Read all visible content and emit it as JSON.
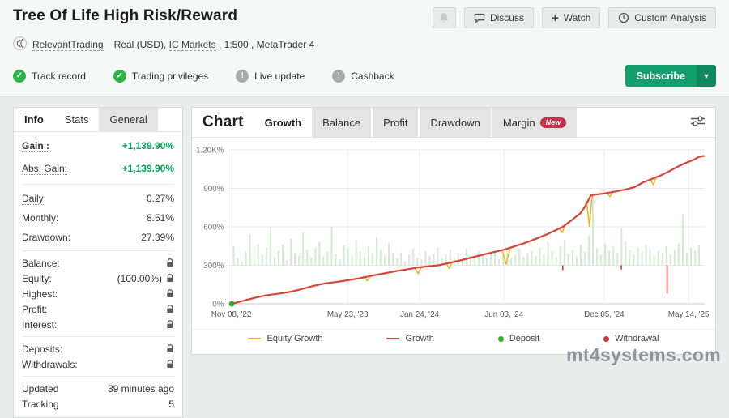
{
  "header": {
    "title": "Tree Of Life High Risk/Reward",
    "buttons": {
      "discuss": "Discuss",
      "watch": "Watch",
      "custom_analysis": "Custom Analysis"
    },
    "account": {
      "trader": "RelevantTrading",
      "details_prefix": "Real (USD), ",
      "broker": "IC Markets",
      "details_suffix": " , 1:500 , MetaTrader 4"
    },
    "badges": [
      {
        "label": "Track record",
        "status": "ok"
      },
      {
        "label": "Trading privileges",
        "status": "ok"
      },
      {
        "label": "Live update",
        "status": "info"
      },
      {
        "label": "Cashback",
        "status": "info"
      }
    ],
    "subscribe_label": "Subscribe"
  },
  "info_panel": {
    "tabs": [
      {
        "label": "Info",
        "style": "active"
      },
      {
        "label": "Stats",
        "style": "plain"
      },
      {
        "label": "General",
        "style": "gray"
      }
    ],
    "rows": [
      {
        "label": "Gain :",
        "value": "+1,139.90%",
        "gain": true,
        "underline": true,
        "bold": true,
        "size": "lg"
      },
      {
        "label": "Abs. Gain:",
        "value": "+1,139.90%",
        "gain": true,
        "underline": true,
        "size": "lg"
      },
      {
        "sep": true
      },
      {
        "label": "Daily",
        "value": "0.27%",
        "underline": true,
        "size": "md"
      },
      {
        "label": "Monthly:",
        "value": "8.51%",
        "underline": true,
        "size": "md"
      },
      {
        "label": "Drawdown:",
        "value": "27.39%",
        "size": "md"
      },
      {
        "sep": true
      },
      {
        "label": "Balance:",
        "value": "",
        "lock": true,
        "size": "sm"
      },
      {
        "label": "Equity:",
        "value": "(100.00%)",
        "lock": true,
        "size": "sm"
      },
      {
        "label": "Highest:",
        "value": "",
        "lock": true,
        "size": "sm"
      },
      {
        "label": "Profit:",
        "value": "",
        "lock": true,
        "size": "sm"
      },
      {
        "label": "Interest:",
        "value": "",
        "lock": true,
        "size": "sm"
      },
      {
        "sep": true
      },
      {
        "label": "Deposits:",
        "value": "",
        "lock": true,
        "size": "sm"
      },
      {
        "label": "Withdrawals:",
        "value": "",
        "lock": true,
        "size": "sm"
      },
      {
        "sep": true
      },
      {
        "label": "Updated",
        "value": "39 minutes ago",
        "size": "sm"
      },
      {
        "label": "Tracking",
        "value": "5",
        "size": "sm"
      }
    ]
  },
  "chart_panel": {
    "tabs": [
      {
        "label": "Chart",
        "style": "title"
      },
      {
        "label": "Growth",
        "style": "active"
      },
      {
        "label": "Balance",
        "style": "gray"
      },
      {
        "label": "Profit",
        "style": "gray"
      },
      {
        "label": "Drawdown",
        "style": "gray"
      },
      {
        "label": "Margin",
        "style": "gray",
        "badge": "New"
      }
    ]
  },
  "chart_data": {
    "type": "line",
    "title": "Growth",
    "xlabel": "",
    "ylabel": "",
    "ylim": [
      0,
      1200
    ],
    "grid": true,
    "legend_position": "bottom",
    "y_ticks": [
      {
        "v": 0,
        "label": "0%"
      },
      {
        "v": 300,
        "label": "300%"
      },
      {
        "v": 600,
        "label": "600%"
      },
      {
        "v": 900,
        "label": "900%"
      },
      {
        "v": 1200,
        "label": "1.20K%"
      }
    ],
    "x_ticks": [
      {
        "f": 0.007,
        "label": "Nov 08, '22"
      },
      {
        "f": 0.251,
        "label": "May 23, '23"
      },
      {
        "f": 0.402,
        "label": "Jan 24, '24"
      },
      {
        "f": 0.579,
        "label": "Jun 03, '24"
      },
      {
        "f": 0.789,
        "label": "Dec 05, '24"
      },
      {
        "f": 0.966,
        "label": "May 14, '25"
      }
    ],
    "series": [
      {
        "name": "Equity Growth",
        "color": "#f0b429",
        "width": 1.6,
        "points": [
          [
            0.008,
            0
          ],
          [
            0.029,
            20
          ],
          [
            0.054,
            45
          ],
          [
            0.079,
            65
          ],
          [
            0.104,
            78
          ],
          [
            0.13,
            92
          ],
          [
            0.155,
            115
          ],
          [
            0.18,
            140
          ],
          [
            0.205,
            160
          ],
          [
            0.231,
            172
          ],
          [
            0.251,
            183
          ],
          [
            0.278,
            200
          ],
          [
            0.286,
            212
          ],
          [
            0.292,
            180
          ],
          [
            0.3,
            222
          ],
          [
            0.306,
            224
          ],
          [
            0.332,
            240
          ],
          [
            0.357,
            258
          ],
          [
            0.382,
            272
          ],
          [
            0.392,
            278
          ],
          [
            0.399,
            235
          ],
          [
            0.406,
            286
          ],
          [
            0.419,
            292
          ],
          [
            0.441,
            300
          ],
          [
            0.458,
            312
          ],
          [
            0.464,
            278
          ],
          [
            0.47,
            322
          ],
          [
            0.487,
            338
          ],
          [
            0.51,
            360
          ],
          [
            0.534,
            382
          ],
          [
            0.557,
            402
          ],
          [
            0.575,
            418
          ],
          [
            0.583,
            310
          ],
          [
            0.592,
            432
          ],
          [
            0.601,
            448
          ],
          [
            0.626,
            478
          ],
          [
            0.648,
            510
          ],
          [
            0.668,
            540
          ],
          [
            0.688,
            575
          ],
          [
            0.695,
            588
          ],
          [
            0.701,
            555
          ],
          [
            0.707,
            612
          ],
          [
            0.722,
            655
          ],
          [
            0.739,
            705
          ],
          [
            0.749,
            760
          ],
          [
            0.752,
            800
          ],
          [
            0.758,
            605
          ],
          [
            0.764,
            848
          ],
          [
            0.778,
            855
          ],
          [
            0.789,
            860
          ],
          [
            0.795,
            862
          ],
          [
            0.801,
            835
          ],
          [
            0.807,
            868
          ],
          [
            0.811,
            875
          ],
          [
            0.833,
            890
          ],
          [
            0.853,
            910
          ],
          [
            0.87,
            945
          ],
          [
            0.886,
            970
          ],
          [
            0.892,
            930
          ],
          [
            0.898,
            982
          ],
          [
            0.907,
            1000
          ],
          [
            0.924,
            1030
          ],
          [
            0.941,
            1065
          ],
          [
            0.958,
            1095
          ],
          [
            0.975,
            1120
          ],
          [
            0.988,
            1145
          ],
          [
            0.998,
            1152
          ]
        ]
      },
      {
        "name": "Growth",
        "color": "#d6453c",
        "width": 2.2,
        "points": [
          [
            0.008,
            0
          ],
          [
            0.029,
            20
          ],
          [
            0.054,
            45
          ],
          [
            0.079,
            65
          ],
          [
            0.104,
            78
          ],
          [
            0.13,
            92
          ],
          [
            0.155,
            115
          ],
          [
            0.18,
            140
          ],
          [
            0.205,
            160
          ],
          [
            0.231,
            172
          ],
          [
            0.251,
            183
          ],
          [
            0.278,
            200
          ],
          [
            0.306,
            222
          ],
          [
            0.332,
            240
          ],
          [
            0.357,
            258
          ],
          [
            0.382,
            272
          ],
          [
            0.396,
            282
          ],
          [
            0.419,
            292
          ],
          [
            0.441,
            300
          ],
          [
            0.463,
            318
          ],
          [
            0.487,
            338
          ],
          [
            0.51,
            360
          ],
          [
            0.534,
            382
          ],
          [
            0.557,
            402
          ],
          [
            0.579,
            422
          ],
          [
            0.601,
            448
          ],
          [
            0.626,
            478
          ],
          [
            0.648,
            510
          ],
          [
            0.668,
            540
          ],
          [
            0.688,
            575
          ],
          [
            0.702,
            600
          ],
          [
            0.722,
            655
          ],
          [
            0.739,
            705
          ],
          [
            0.749,
            760
          ],
          [
            0.761,
            845
          ],
          [
            0.778,
            855
          ],
          [
            0.789,
            860
          ],
          [
            0.811,
            875
          ],
          [
            0.833,
            890
          ],
          [
            0.853,
            910
          ],
          [
            0.87,
            945
          ],
          [
            0.89,
            975
          ],
          [
            0.907,
            1000
          ],
          [
            0.924,
            1030
          ],
          [
            0.941,
            1065
          ],
          [
            0.958,
            1095
          ],
          [
            0.975,
            1120
          ],
          [
            0.988,
            1145
          ],
          [
            0.998,
            1152
          ]
        ]
      }
    ],
    "bars": {
      "name": "activity",
      "color": "#cbe7c8",
      "baseline": 300,
      "values": [
        150,
        60,
        30,
        105,
        240,
        45,
        170,
        80,
        140,
        300,
        65,
        115,
        160,
        40,
        210,
        95,
        75,
        255,
        120,
        60,
        140,
        185,
        70,
        110,
        300,
        90,
        50,
        155,
        130,
        80,
        195,
        110,
        60,
        150,
        95,
        220,
        120,
        70,
        175,
        100,
        55,
        100,
        35,
        85,
        130,
        60,
        45,
        110,
        75,
        90,
        140,
        55,
        85,
        120,
        65,
        100,
        45,
        130,
        75,
        55,
        110,
        85,
        60,
        95,
        120,
        45,
        75,
        100,
        55,
        85,
        130,
        65,
        95,
        110,
        75,
        140,
        85,
        180,
        110,
        65,
        150,
        200,
        90,
        120,
        75,
        160,
        105,
        230,
        560,
        130,
        85,
        170,
        115,
        150,
        95,
        290,
        190,
        120,
        85,
        140,
        105,
        160,
        130,
        75,
        115,
        95,
        150,
        85,
        120,
        170,
        400,
        100,
        140,
        115,
        160
      ]
    },
    "deposits": {
      "color": "#2db32d",
      "points": [
        [
          0.008,
          0
        ]
      ]
    },
    "withdrawals": {
      "color": "#d0342c",
      "bars": [
        [
          0.702,
          300,
          262
        ],
        [
          0.825,
          300,
          268
        ],
        [
          0.921,
          300,
          80
        ]
      ]
    },
    "legend": [
      {
        "label": "Equity Growth",
        "swatch": "line",
        "color": "#f0b429"
      },
      {
        "label": "Growth",
        "swatch": "line",
        "color": "#d6453c"
      },
      {
        "label": "Deposit",
        "swatch": "dot",
        "color": "#2db32d"
      },
      {
        "label": "Withdrawal",
        "swatch": "dot",
        "color": "#d0342c"
      }
    ]
  },
  "watermark": "mt4systems.com"
}
